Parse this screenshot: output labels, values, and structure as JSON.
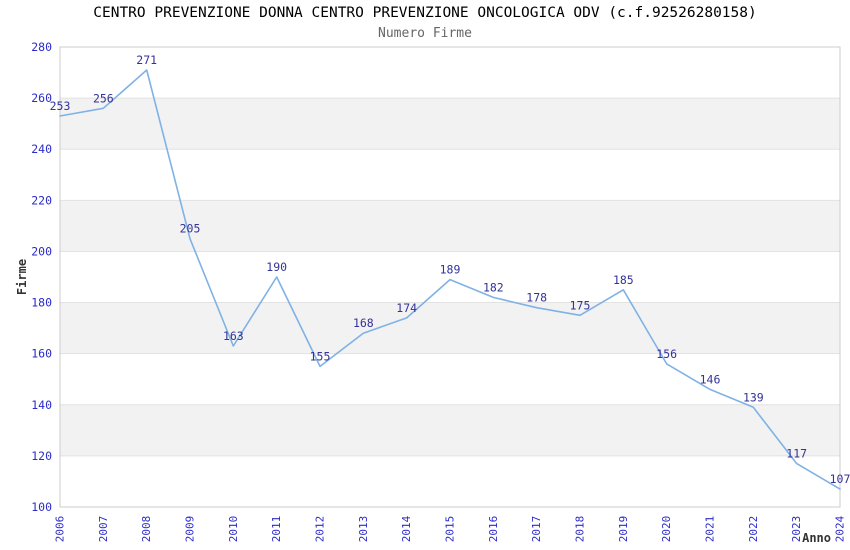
{
  "chart_data": {
    "type": "line",
    "title": "CENTRO PREVENZIONE DONNA CENTRO PREVENZIONE ONCOLOGICA ODV (c.f.92526280158)",
    "subtitle": "Numero Firme",
    "xlabel": "Anno",
    "ylabel": "Firme",
    "categories": [
      "2006",
      "2007",
      "2008",
      "2009",
      "2010",
      "2011",
      "2012",
      "2013",
      "2014",
      "2015",
      "2016",
      "2017",
      "2018",
      "2019",
      "2020",
      "2021",
      "2022",
      "2023",
      "2024"
    ],
    "series": [
      {
        "name": "Numero Firme",
        "values": [
          253,
          256,
          271,
          205,
          163,
          190,
          155,
          168,
          174,
          189,
          182,
          178,
          175,
          185,
          156,
          146,
          139,
          117,
          107
        ]
      }
    ],
    "ylim": [
      100,
      280
    ],
    "yticks": [
      100,
      120,
      140,
      160,
      180,
      200,
      220,
      240,
      260,
      280
    ],
    "grid": true,
    "legend_position": "none",
    "x_tick_rotation_deg": 90,
    "data_labels_visible": true,
    "colors": {
      "line": "#7fb2e5",
      "data_label": "#333399",
      "tick_label": "#2b2bcc",
      "axis_title": "#333333",
      "title": "#000000",
      "subtitle": "#666666",
      "band_gray": "#f2f2f2",
      "band_white": "#ffffff",
      "gridline": "#e2e2e2",
      "plot_border": "#cccccc",
      "background": "#ffffff"
    }
  }
}
